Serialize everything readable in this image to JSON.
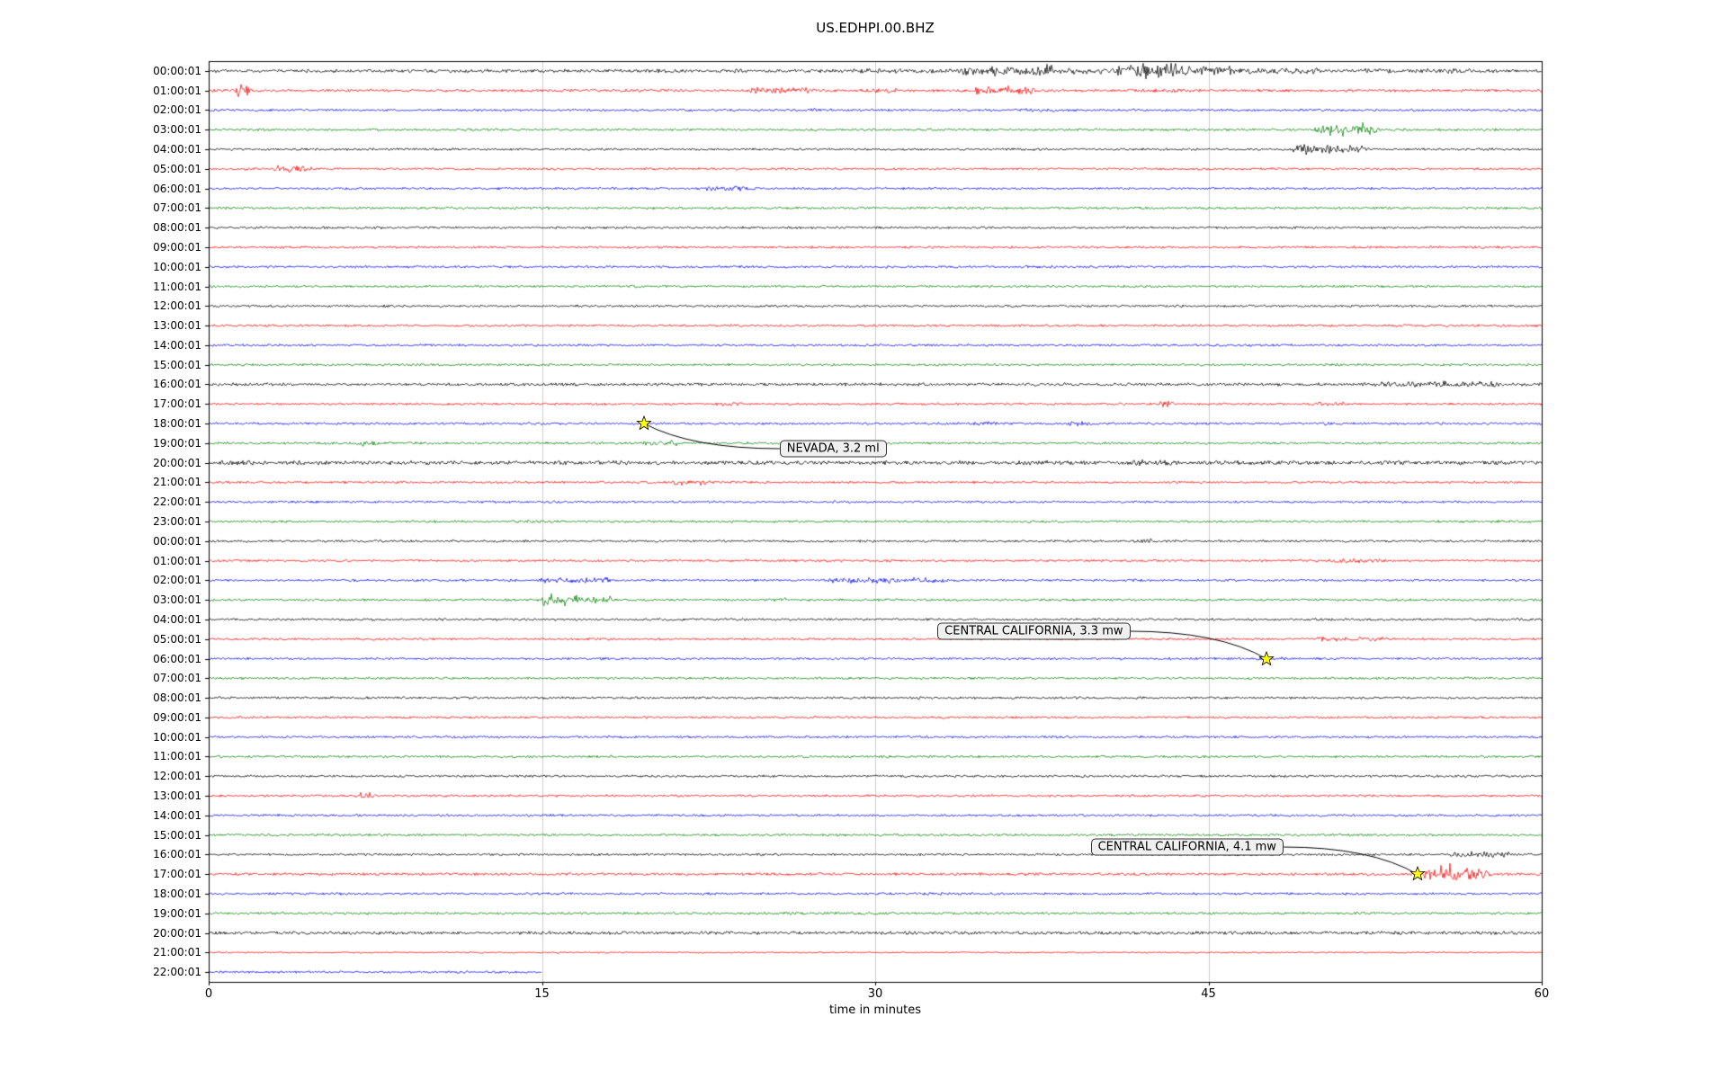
{
  "chart_data": {
    "type": "line",
    "subtype": "helicorder-day-plot",
    "title": "US.EDHPI.00.BHZ",
    "xlabel": "time in minutes",
    "xlim": [
      0,
      60
    ],
    "x_ticks": [
      0,
      15,
      30,
      45,
      60
    ],
    "grid_minutes": [
      15,
      30,
      45
    ],
    "trace_color_cycle": [
      "#000000",
      "#ff0000",
      "#0000ff",
      "#008000"
    ],
    "event_marker_color": "#ffff00",
    "noise_base": 1.1,
    "noise_overrides": {
      "0": 1.6,
      "1": 1.3,
      "16": 1.4,
      "20": 1.8,
      "41": 1.3,
      "44": 1.5,
      "45": 0.7
    },
    "rows": [
      {
        "label": "00:00:01",
        "color": "#000000"
      },
      {
        "label": "01:00:01",
        "color": "#ff0000"
      },
      {
        "label": "02:00:01",
        "color": "#0000ff"
      },
      {
        "label": "03:00:01",
        "color": "#008000"
      },
      {
        "label": "04:00:01",
        "color": "#000000"
      },
      {
        "label": "05:00:01",
        "color": "#ff0000"
      },
      {
        "label": "06:00:01",
        "color": "#0000ff"
      },
      {
        "label": "07:00:01",
        "color": "#008000"
      },
      {
        "label": "08:00:01",
        "color": "#000000"
      },
      {
        "label": "09:00:01",
        "color": "#ff0000"
      },
      {
        "label": "10:00:01",
        "color": "#0000ff"
      },
      {
        "label": "11:00:01",
        "color": "#008000"
      },
      {
        "label": "12:00:01",
        "color": "#000000"
      },
      {
        "label": "13:00:01",
        "color": "#ff0000"
      },
      {
        "label": "14:00:01",
        "color": "#0000ff"
      },
      {
        "label": "15:00:01",
        "color": "#008000"
      },
      {
        "label": "16:00:01",
        "color": "#000000"
      },
      {
        "label": "17:00:01",
        "color": "#ff0000"
      },
      {
        "label": "18:00:01",
        "color": "#0000ff"
      },
      {
        "label": "19:00:01",
        "color": "#008000"
      },
      {
        "label": "20:00:01",
        "color": "#000000"
      },
      {
        "label": "21:00:01",
        "color": "#ff0000"
      },
      {
        "label": "22:00:01",
        "color": "#0000ff"
      },
      {
        "label": "23:00:01",
        "color": "#008000"
      },
      {
        "label": "00:00:01",
        "color": "#000000"
      },
      {
        "label": "01:00:01",
        "color": "#ff0000"
      },
      {
        "label": "02:00:01",
        "color": "#0000ff"
      },
      {
        "label": "03:00:01",
        "color": "#008000"
      },
      {
        "label": "04:00:01",
        "color": "#000000"
      },
      {
        "label": "05:00:01",
        "color": "#ff0000"
      },
      {
        "label": "06:00:01",
        "color": "#0000ff"
      },
      {
        "label": "07:00:01",
        "color": "#008000"
      },
      {
        "label": "08:00:01",
        "color": "#000000"
      },
      {
        "label": "09:00:01",
        "color": "#ff0000"
      },
      {
        "label": "10:00:01",
        "color": "#0000ff"
      },
      {
        "label": "11:00:01",
        "color": "#008000"
      },
      {
        "label": "12:00:01",
        "color": "#000000"
      },
      {
        "label": "13:00:01",
        "color": "#ff0000"
      },
      {
        "label": "14:00:01",
        "color": "#0000ff"
      },
      {
        "label": "15:00:01",
        "color": "#008000"
      },
      {
        "label": "16:00:01",
        "color": "#000000"
      },
      {
        "label": "17:00:01",
        "color": "#ff0000"
      },
      {
        "label": "18:00:01",
        "color": "#0000ff"
      },
      {
        "label": "19:00:01",
        "color": "#008000"
      },
      {
        "label": "20:00:01",
        "color": "#000000"
      },
      {
        "label": "21:00:01",
        "color": "#ff0000"
      },
      {
        "label": "22:00:01",
        "color": "#0000ff",
        "end_minute": 15
      }
    ],
    "events": [
      {
        "label": "NEVADA, 3.2 ml",
        "star_minute": 19.6,
        "star_row": 18,
        "box_minute": 25.7,
        "box_row": 19.3,
        "connect_side": "left"
      },
      {
        "label": "CENTRAL CALIFORNIA, 3.3 mw",
        "star_minute": 47.6,
        "star_row": 30,
        "box_minute": 32.8,
        "box_row": 28.6,
        "connect_side": "right"
      },
      {
        "label": "CENTRAL CALIFORNIA, 4.1 mw",
        "star_minute": 54.4,
        "star_row": 41,
        "box_minute": 39.7,
        "box_row": 39.6,
        "connect_side": "right"
      }
    ],
    "activity": [
      {
        "row": 0,
        "start": 23,
        "end": 24,
        "amp": 2.5
      },
      {
        "row": 0,
        "start": 29,
        "end": 34,
        "amp": 3
      },
      {
        "row": 0,
        "start": 34,
        "end": 38,
        "amp": 6
      },
      {
        "row": 0,
        "start": 38,
        "end": 41,
        "amp": 4
      },
      {
        "row": 0,
        "start": 41,
        "end": 46,
        "amp": 7
      },
      {
        "row": 0,
        "start": 46,
        "end": 50,
        "amp": 4
      },
      {
        "row": 0,
        "start": 52,
        "end": 57,
        "amp": 3
      },
      {
        "row": 1,
        "start": 1.3,
        "end": 1.7,
        "amp": 9
      },
      {
        "row": 1,
        "start": 24.5,
        "end": 27,
        "amp": 4
      },
      {
        "row": 1,
        "start": 29.5,
        "end": 31,
        "amp": 3
      },
      {
        "row": 1,
        "start": 34.5,
        "end": 37,
        "amp": 5
      },
      {
        "row": 1,
        "start": 42,
        "end": 44,
        "amp": 2.5
      },
      {
        "row": 2,
        "start": 27,
        "end": 28,
        "amp": 2
      },
      {
        "row": 2,
        "start": 36.5,
        "end": 38,
        "amp": 2.5
      },
      {
        "row": 3,
        "start": 50,
        "end": 52.5,
        "amp": 6
      },
      {
        "row": 4,
        "start": 49,
        "end": 52,
        "amp": 7
      },
      {
        "row": 5,
        "start": 3,
        "end": 4.5,
        "amp": 5
      },
      {
        "row": 6,
        "start": 22.5,
        "end": 24.5,
        "amp": 3.5
      },
      {
        "row": 16,
        "start": 44,
        "end": 46,
        "amp": 2
      },
      {
        "row": 16,
        "start": 52,
        "end": 58,
        "amp": 4
      },
      {
        "row": 17,
        "start": 23,
        "end": 24,
        "amp": 3
      },
      {
        "row": 17,
        "start": 42.8,
        "end": 43.3,
        "amp": 4
      },
      {
        "row": 17,
        "start": 50,
        "end": 51,
        "amp": 3
      },
      {
        "row": 18,
        "start": 34.5,
        "end": 35.5,
        "amp": 3
      },
      {
        "row": 18,
        "start": 38.8,
        "end": 39.5,
        "amp": 3
      },
      {
        "row": 18,
        "start": 50,
        "end": 51,
        "amp": 3
      },
      {
        "row": 19,
        "start": 6.8,
        "end": 7.4,
        "amp": 4
      },
      {
        "row": 19,
        "start": 19.5,
        "end": 21,
        "amp": 4
      },
      {
        "row": 20,
        "start": 0.5,
        "end": 2,
        "amp": 4
      },
      {
        "row": 20,
        "start": 36.5,
        "end": 38,
        "amp": 3
      },
      {
        "row": 20,
        "start": 41.5,
        "end": 43.5,
        "amp": 4
      },
      {
        "row": 20,
        "start": 52.5,
        "end": 54,
        "amp": 3
      },
      {
        "row": 21,
        "start": 21,
        "end": 22.5,
        "amp": 4
      },
      {
        "row": 23,
        "start": 14,
        "end": 15,
        "amp": 2
      },
      {
        "row": 24,
        "start": 41.8,
        "end": 42.3,
        "amp": 4
      },
      {
        "row": 25,
        "start": 50.5,
        "end": 53,
        "amp": 3
      },
      {
        "row": 26,
        "start": 15,
        "end": 18,
        "amp": 4
      },
      {
        "row": 26,
        "start": 28,
        "end": 33,
        "amp": 3.5
      },
      {
        "row": 26,
        "start": 41.5,
        "end": 42,
        "amp": 2.5
      },
      {
        "row": 27,
        "start": 15,
        "end": 18,
        "amp": 5
      },
      {
        "row": 27,
        "start": 25.3,
        "end": 25.9,
        "amp": 3
      },
      {
        "row": 29,
        "start": 50,
        "end": 53,
        "amp": 3
      },
      {
        "row": 30,
        "start": 47.3,
        "end": 48.6,
        "amp": 2.5
      },
      {
        "row": 37,
        "start": 6.9,
        "end": 7.3,
        "amp": 5
      },
      {
        "row": 40,
        "start": 56,
        "end": 58.5,
        "amp": 4
      },
      {
        "row": 41,
        "start": 54.8,
        "end": 57.5,
        "amp": 9
      },
      {
        "row": 42,
        "start": 22,
        "end": 23,
        "amp": 1.8
      },
      {
        "row": 42,
        "start": 31.5,
        "end": 33,
        "amp": 2
      },
      {
        "row": 43,
        "start": 25,
        "end": 31,
        "amp": 1.8
      },
      {
        "row": 44,
        "start": 49,
        "end": 54,
        "amp": 2.2
      },
      {
        "row": 44,
        "start": 57.5,
        "end": 59,
        "amp": 2.2
      }
    ]
  }
}
